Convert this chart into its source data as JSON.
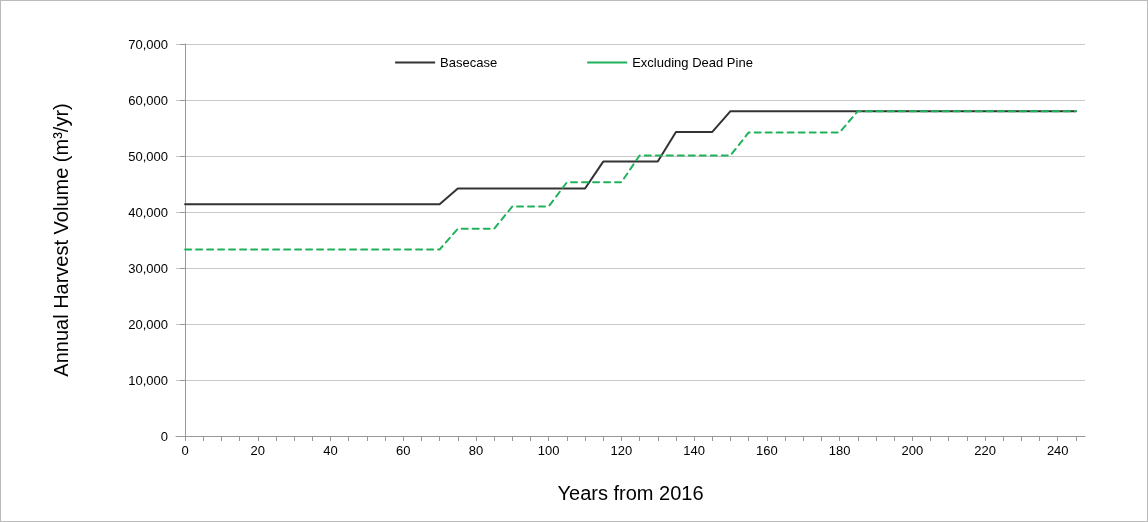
{
  "chart_data": {
    "type": "line",
    "xlabel": "Years from 2016",
    "ylabel": "Annual Harvest Volume (m³/yr)",
    "xlim": [
      -2.5,
      247.5
    ],
    "xticks": [
      0,
      {
        "value": 5,
        "label": null
      },
      {
        "value": 10,
        "label": null
      },
      {
        "value": 15,
        "label": null
      },
      20,
      {
        "value": 25,
        "label": null
      },
      {
        "value": 30,
        "label": null
      },
      {
        "value": 35,
        "label": null
      },
      40,
      {
        "value": 45,
        "label": null
      },
      {
        "value": 50,
        "label": null
      },
      {
        "value": 55,
        "label": null
      },
      60,
      {
        "value": 65,
        "label": null
      },
      {
        "value": 70,
        "label": null
      },
      {
        "value": 75,
        "label": null
      },
      80,
      {
        "value": 85,
        "label": null
      },
      {
        "value": 90,
        "label": null
      },
      {
        "value": 95,
        "label": null
      },
      100,
      {
        "value": 105,
        "label": null
      },
      {
        "value": 110,
        "label": null
      },
      {
        "value": 115,
        "label": null
      },
      120,
      {
        "value": 125,
        "label": null
      },
      {
        "value": 130,
        "label": null
      },
      {
        "value": 135,
        "label": null
      },
      140,
      {
        "value": 145,
        "label": null
      },
      {
        "value": 150,
        "label": null
      },
      {
        "value": 155,
        "label": null
      },
      160,
      {
        "value": 165,
        "label": null
      },
      {
        "value": 170,
        "label": null
      },
      {
        "value": 175,
        "label": null
      },
      180,
      {
        "value": 185,
        "label": null
      },
      {
        "value": 190,
        "label": null
      },
      {
        "value": 195,
        "label": null
      },
      200,
      {
        "value": 205,
        "label": null
      },
      {
        "value": 210,
        "label": null
      },
      {
        "value": 215,
        "label": null
      },
      220,
      {
        "value": 225,
        "label": null
      },
      {
        "value": 230,
        "label": null
      },
      {
        "value": 235,
        "label": null
      },
      240,
      {
        "value": 245,
        "label": null
      }
    ],
    "ylim": [
      0,
      70000
    ],
    "yticks": [
      {
        "value": 0,
        "label": "0"
      },
      {
        "value": 10000,
        "label": "10,000"
      },
      {
        "value": 20000,
        "label": "20,000"
      },
      {
        "value": 30000,
        "label": "30,000"
      },
      {
        "value": 40000,
        "label": "40,000"
      },
      {
        "value": 50000,
        "label": "50,000"
      },
      {
        "value": 60000,
        "label": "60,000"
      },
      {
        "value": 70000,
        "label": "70,000"
      }
    ],
    "grid": "y",
    "legend": "top",
    "marker": "none",
    "series": [
      {
        "name": "Basecase",
        "color": "#333333",
        "line_style": "solid",
        "x": [
          0,
          70,
          75,
          110,
          115,
          130,
          135,
          145,
          150,
          245
        ],
        "values": [
          41400,
          41400,
          44200,
          44200,
          49000,
          49000,
          54300,
          54300,
          58000,
          58000
        ]
      },
      {
        "name": "Excluding Dead Pine",
        "color": "#1fb25a",
        "line_style": "dashed",
        "x": [
          0,
          70,
          75,
          85,
          90,
          100,
          105,
          120,
          125,
          150,
          155,
          180,
          185,
          245
        ],
        "values": [
          33300,
          33300,
          37000,
          37000,
          41000,
          41000,
          45300,
          45300,
          50100,
          50100,
          54200,
          54200,
          58000,
          58000
        ]
      }
    ]
  }
}
